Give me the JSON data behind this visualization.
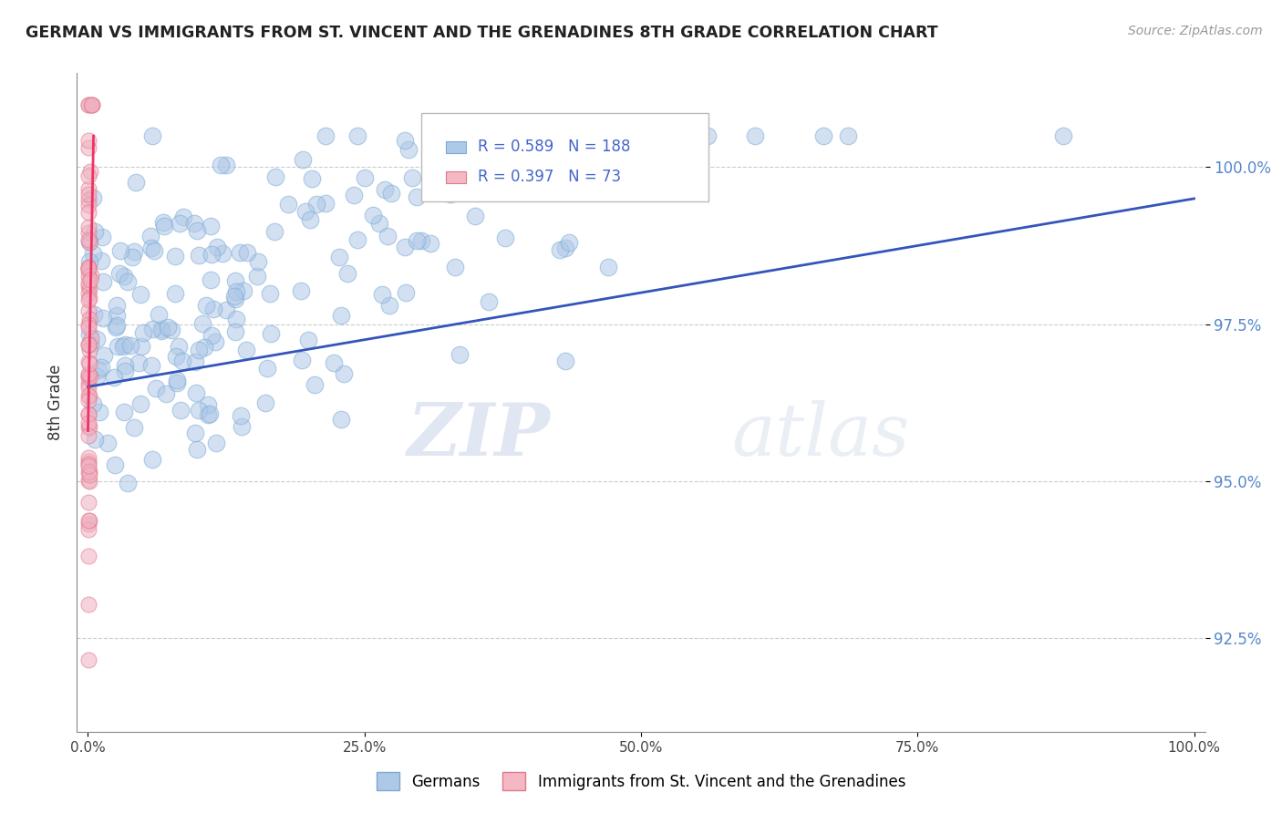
{
  "title": "GERMAN VS IMMIGRANTS FROM ST. VINCENT AND THE GRENADINES 8TH GRADE CORRELATION CHART",
  "source": "Source: ZipAtlas.com",
  "ylabel": "8th Grade",
  "blue_R": 0.589,
  "blue_N": 188,
  "pink_R": 0.397,
  "pink_N": 73,
  "blue_color": "#aec8e8",
  "blue_edge": "#7aaad4",
  "pink_color": "#f0b0c0",
  "pink_edge": "#e07888",
  "blue_line_color": "#3355bb",
  "pink_line_color": "#ee3366",
  "legend_blue_color": "#aec8e8",
  "legend_pink_color": "#f4b8c4",
  "legend_blue_edge": "#7aaad4",
  "legend_pink_edge": "#e07888",
  "watermark_zip": "ZIP",
  "watermark_atlas": "atlas",
  "ytick_values": [
    92.5,
    95.0,
    97.5,
    100.0
  ],
  "legend_label_blue": "Germans",
  "legend_label_pink": "Immigrants from St. Vincent and the Grenadines",
  "xmin": 0.0,
  "xmax": 100.0,
  "ymin": 91.0,
  "ymax": 101.5
}
